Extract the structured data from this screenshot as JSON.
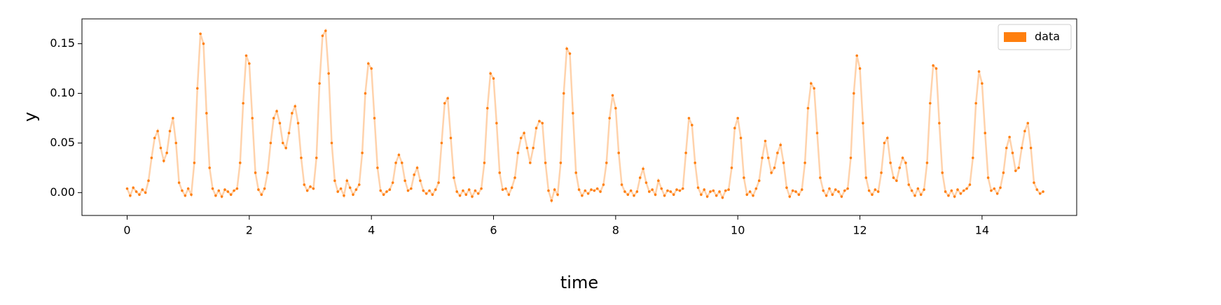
{
  "chart_data": {
    "type": "line",
    "xlabel": "time",
    "ylabel": "y",
    "xlim": [
      -0.74,
      15.55
    ],
    "ylim": [
      -0.023,
      0.175
    ],
    "xticks": [
      0,
      2,
      4,
      6,
      8,
      10,
      12,
      14
    ],
    "yticks": [
      {
        "value": 0,
        "label": "0.00"
      },
      0.05,
      {
        "value": 0.1,
        "label": "0.10"
      },
      0.15
    ],
    "legend": "upper right",
    "x": [
      0,
      0.05,
      0.1,
      0.15,
      0.2,
      0.25,
      0.3,
      0.35,
      0.4,
      0.45,
      0.5,
      0.55,
      0.6,
      0.65,
      0.7,
      0.75,
      0.8,
      0.85,
      0.9,
      0.95,
      1,
      1.05,
      1.1,
      1.15,
      1.2,
      1.25,
      1.3,
      1.35,
      1.4,
      1.45,
      1.5,
      1.55,
      1.6,
      1.65,
      1.7,
      1.75,
      1.8,
      1.85,
      1.9,
      1.95,
      2,
      2.05,
      2.1,
      2.15,
      2.2,
      2.25,
      2.3,
      2.35,
      2.4,
      2.45,
      2.5,
      2.55,
      2.6,
      2.65,
      2.7,
      2.75,
      2.8,
      2.85,
      2.9,
      2.95,
      3,
      3.05,
      3.1,
      3.15,
      3.2,
      3.25,
      3.3,
      3.35,
      3.4,
      3.45,
      3.5,
      3.55,
      3.6,
      3.65,
      3.7,
      3.75,
      3.8,
      3.85,
      3.9,
      3.95,
      4,
      4.05,
      4.1,
      4.15,
      4.2,
      4.25,
      4.3,
      4.35,
      4.4,
      4.45,
      4.5,
      4.55,
      4.6,
      4.65,
      4.7,
      4.75,
      4.8,
      4.85,
      4.9,
      4.95,
      5,
      5.05,
      5.1,
      5.15,
      5.2,
      5.25,
      5.3,
      5.35,
      5.4,
      5.45,
      5.5,
      5.55,
      5.6,
      5.65,
      5.7,
      5.75,
      5.8,
      5.85,
      5.9,
      5.95,
      6,
      6.05,
      6.1,
      6.15,
      6.2,
      6.25,
      6.3,
      6.35,
      6.4,
      6.45,
      6.5,
      6.55,
      6.6,
      6.65,
      6.7,
      6.75,
      6.8,
      6.85,
      6.9,
      6.95,
      7,
      7.05,
      7.1,
      7.15,
      7.2,
      7.25,
      7.3,
      7.35,
      7.4,
      7.45,
      7.5,
      7.55,
      7.6,
      7.65,
      7.7,
      7.75,
      7.8,
      7.85,
      7.9,
      7.95,
      8,
      8.05,
      8.1,
      8.15,
      8.2,
      8.25,
      8.3,
      8.35,
      8.4,
      8.45,
      8.5,
      8.55,
      8.6,
      8.65,
      8.7,
      8.75,
      8.8,
      8.85,
      8.9,
      8.95,
      9,
      9.05,
      9.1,
      9.15,
      9.2,
      9.25,
      9.3,
      9.35,
      9.4,
      9.45,
      9.5,
      9.55,
      9.6,
      9.65,
      9.7,
      9.75,
      9.8,
      9.85,
      9.9,
      9.95,
      10,
      10.05,
      10.1,
      10.15,
      10.2,
      10.25,
      10.3,
      10.35,
      10.4,
      10.45,
      10.5,
      10.55,
      10.6,
      10.65,
      10.7,
      10.75,
      10.8,
      10.85,
      10.9,
      10.95,
      11,
      11.05,
      11.1,
      11.15,
      11.2,
      11.25,
      11.3,
      11.35,
      11.4,
      11.45,
      11.5,
      11.55,
      11.6,
      11.65,
      11.7,
      11.75,
      11.8,
      11.85,
      11.9,
      11.95,
      12,
      12.05,
      12.1,
      12.15,
      12.2,
      12.25,
      12.3,
      12.35,
      12.4,
      12.45,
      12.5,
      12.55,
      12.6,
      12.65,
      12.7,
      12.75,
      12.8,
      12.85,
      12.9,
      12.95,
      13,
      13.05,
      13.1,
      13.15,
      13.2,
      13.25,
      13.3,
      13.35,
      13.4,
      13.45,
      13.5,
      13.55,
      13.6,
      13.65,
      13.7,
      13.75,
      13.8,
      13.85,
      13.9,
      13.95,
      14,
      14.05,
      14.1,
      14.15,
      14.2,
      14.25,
      14.3,
      14.35,
      14.4,
      14.45,
      14.5,
      14.55,
      14.6,
      14.65,
      14.7,
      14.75,
      14.8,
      14.85,
      14.9,
      14.95,
      15
    ],
    "series": [
      {
        "name": "data",
        "color": "#ff7f0e",
        "values": [
          0.004,
          -0.003,
          0.005,
          0.001,
          -0.002,
          0.003,
          0,
          0.012,
          0.035,
          0.055,
          0.062,
          0.045,
          0.032,
          0.04,
          0.062,
          0.075,
          0.05,
          0.01,
          0.002,
          -0.003,
          0.004,
          -0.002,
          0.03,
          0.105,
          0.16,
          0.15,
          0.08,
          0.025,
          0.004,
          -0.003,
          0.002,
          -0.004,
          0.003,
          0.001,
          -0.002,
          0.002,
          0.004,
          0.03,
          0.09,
          0.138,
          0.13,
          0.075,
          0.02,
          0.003,
          -0.002,
          0.004,
          0.02,
          0.05,
          0.075,
          0.082,
          0.07,
          0.05,
          0.045,
          0.06,
          0.08,
          0.087,
          0.07,
          0.035,
          0.008,
          0.002,
          0.006,
          0.004,
          0.035,
          0.11,
          0.158,
          0.163,
          0.12,
          0.05,
          0.012,
          0.001,
          0.004,
          -0.003,
          0.012,
          0.005,
          -0.002,
          0.003,
          0.008,
          0.04,
          0.1,
          0.13,
          0.125,
          0.075,
          0.025,
          0.002,
          -0.002,
          0.001,
          0.003,
          0.01,
          0.03,
          0.038,
          0.03,
          0.012,
          0.002,
          0.004,
          0.018,
          0.025,
          0.012,
          0.002,
          -0.001,
          0.002,
          -0.002,
          0.003,
          0.01,
          0.05,
          0.09,
          0.095,
          0.055,
          0.015,
          0.001,
          -0.003,
          0.002,
          -0.002,
          0.003,
          -0.004,
          0.002,
          -0.001,
          0.004,
          0.03,
          0.085,
          0.12,
          0.115,
          0.07,
          0.02,
          0.003,
          0.004,
          -0.002,
          0.005,
          0.015,
          0.04,
          0.055,
          0.06,
          0.045,
          0.03,
          0.045,
          0.065,
          0.072,
          0.07,
          0.03,
          0.002,
          -0.008,
          0.003,
          -0.002,
          0.03,
          0.1,
          0.145,
          0.14,
          0.08,
          0.02,
          0.003,
          -0.003,
          0.002,
          -0.001,
          0.003,
          0.002,
          0.004,
          0.001,
          0.008,
          0.03,
          0.075,
          0.098,
          0.085,
          0.04,
          0.008,
          0.001,
          -0.002,
          0.002,
          -0.003,
          0.001,
          0.015,
          0.024,
          0.01,
          0.001,
          0.003,
          -0.002,
          0.012,
          0.004,
          -0.003,
          0.002,
          0.001,
          -0.002,
          0.003,
          0.002,
          0.004,
          0.04,
          0.075,
          0.068,
          0.03,
          0.005,
          -0.002,
          0.003,
          -0.004,
          0.001,
          0.002,
          -0.003,
          0.001,
          -0.005,
          0.002,
          0.003,
          0.025,
          0.065,
          0.075,
          0.055,
          0.015,
          -0.002,
          0.001,
          -0.003,
          0.004,
          0.012,
          0.035,
          0.052,
          0.035,
          0.02,
          0.025,
          0.04,
          0.048,
          0.03,
          0.005,
          -0.004,
          0.002,
          0.001,
          -0.002,
          0.003,
          0.03,
          0.085,
          0.11,
          0.105,
          0.06,
          0.015,
          0.002,
          -0.003,
          0.004,
          -0.002,
          0.003,
          0.001,
          -0.004,
          0.002,
          0.004,
          0.035,
          0.1,
          0.138,
          0.125,
          0.07,
          0.015,
          0.002,
          -0.002,
          0.003,
          0.001,
          0.02,
          0.05,
          0.055,
          0.03,
          0.015,
          0.012,
          0.025,
          0.035,
          0.03,
          0.008,
          0.002,
          -0.003,
          0.004,
          -0.002,
          0.003,
          0.03,
          0.09,
          0.128,
          0.125,
          0.07,
          0.02,
          0.001,
          -0.003,
          0.002,
          -0.004,
          0.003,
          -0.001,
          0.002,
          0.004,
          0.008,
          0.035,
          0.09,
          0.122,
          0.11,
          0.06,
          0.015,
          0.002,
          0.004,
          -0.001,
          0.005,
          0.02,
          0.045,
          0.056,
          0.04,
          0.022,
          0.025,
          0.045,
          0.062,
          0.07,
          0.045,
          0.01,
          0.003,
          -0.001,
          0.001
        ]
      }
    ]
  }
}
